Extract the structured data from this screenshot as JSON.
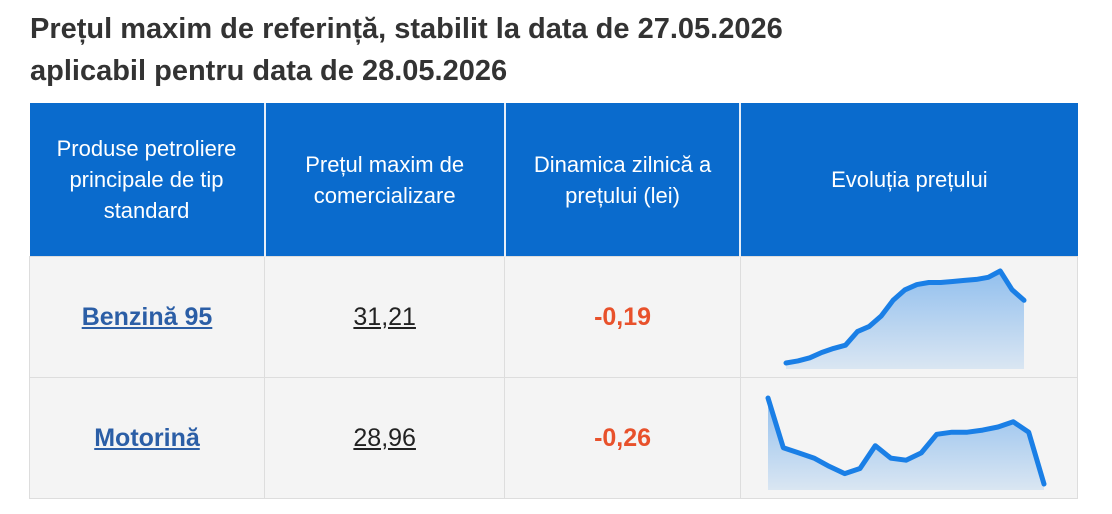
{
  "header": {
    "title_line1": "Prețul maxim de referință, stabilit la data de 27.05.2026",
    "title_line2": "aplicabil pentru data de 28.05.2026"
  },
  "table": {
    "columns": [
      "Produse petroliere principale de tip standard",
      "Prețul maxim de comercializare",
      "Dinamica zilnică a prețului (lei)",
      "Evoluția prețului"
    ],
    "rows": [
      {
        "product": "Benzină 95",
        "price": "31,21",
        "change": "-0,19",
        "trend": {
          "color": "#1a7fe6",
          "values": [
            5,
            7,
            10,
            15,
            19,
            22,
            35,
            40,
            50,
            65,
            75,
            80,
            82,
            82,
            83,
            84,
            85,
            87,
            93,
            75,
            65
          ]
        }
      },
      {
        "product": "Motorină",
        "price": "28,96",
        "change": "-0,26",
        "trend": {
          "color": "#1a7fe6",
          "values": [
            88,
            40,
            35,
            30,
            22,
            15,
            20,
            42,
            30,
            28,
            35,
            53,
            55,
            55,
            57,
            60,
            65,
            55,
            5
          ]
        }
      }
    ]
  }
}
